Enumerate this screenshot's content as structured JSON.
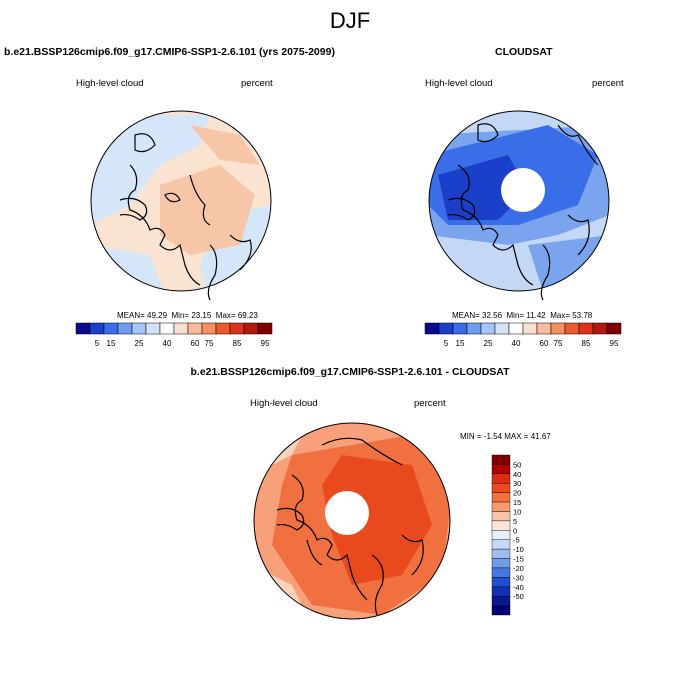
{
  "figure_title": "DJF",
  "panels": [
    {
      "title": "b.e21.BSSP126cmip6.f09_g17.CMIP6-SSP1-2.6.101 (yrs 2075-2099)",
      "left_label": "High-level cloud",
      "right_label": "percent",
      "stats": {
        "mean_label": "MEAN=",
        "mean": "49.29",
        "min_label": "Min=",
        "min": "23.15",
        "max_label": "Max=",
        "max": "69.23"
      }
    },
    {
      "title": "CLOUDSAT",
      "left_label": "High-level cloud",
      "right_label": "percent",
      "stats": {
        "mean_label": "MEAN=",
        "mean": "32.56",
        "min_label": "Min=",
        "min": "11.42",
        "max_label": "Max=",
        "max": "53.78"
      }
    },
    {
      "title": "b.e21.BSSP126cmip6.f09_g17.CMIP6-SSP1-2.6.101 - CLOUDSAT",
      "left_label": "High-level cloud",
      "right_label": "percent",
      "stats_text": "MIN = -1.54 MAX = 41.67"
    }
  ],
  "abs_colorbar": {
    "colors": [
      "#0a0a8c",
      "#1a3fc8",
      "#3a6ee8",
      "#6f9bf2",
      "#a6c4f7",
      "#d4e3fa",
      "#ffffff",
      "#fbe0d0",
      "#f8bb9c",
      "#f4915f",
      "#ec5a2a",
      "#d9341a",
      "#b01a10",
      "#800000"
    ],
    "labels": [
      "5",
      "15",
      "25",
      "40",
      "60",
      "75",
      "85",
      "95"
    ]
  },
  "diff_colorbar": {
    "colors": [
      "#800000",
      "#b00000",
      "#dd2a10",
      "#ee4a20",
      "#f57240",
      "#f89a70",
      "#fbc3a4",
      "#fde5d5",
      "#e6eefa",
      "#c6d8f5",
      "#9dbcf2",
      "#709cea",
      "#4678e0",
      "#2050d0",
      "#1230b0",
      "#081890",
      "#000070"
    ],
    "labels": [
      "50",
      "40",
      "30",
      "20",
      "15",
      "10",
      "5",
      "0",
      "-5",
      "-10",
      "-15",
      "-20",
      "-30",
      "-40",
      "-50"
    ]
  },
  "map_colors": {
    "panel1_base": "#fbe3d2",
    "panel1_blue": "#d6e6fa",
    "panel1_orange": "#f7c6a8",
    "panel2_base": "#c4d8f5",
    "panel2_mid": "#7aa5ee",
    "panel2_dark": "#3a6ee8",
    "panel2_darkest": "#1a3fc8",
    "panel3_base": "#f8a07a",
    "panel3_mid": "#f07040",
    "panel3_dark": "#e84a1e",
    "panel3_light": "#fbd3bd"
  }
}
